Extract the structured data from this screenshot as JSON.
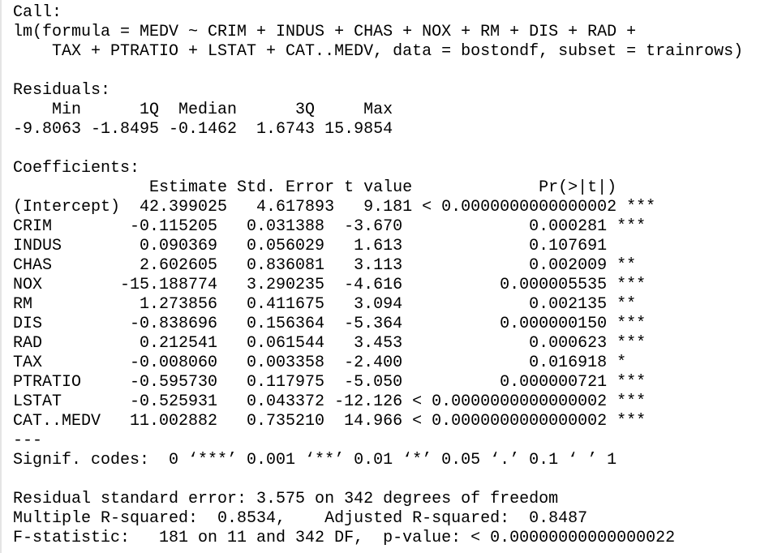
{
  "console": {
    "lines": [
      "Call:",
      "lm(formula = MEDV ~ CRIM + INDUS + CHAS + NOX + RM + DIS + RAD + ",
      "    TAX + PTRATIO + LSTAT + CAT..MEDV, data = bostondf, subset = trainrows)",
      "",
      "Residuals:",
      "    Min      1Q  Median      3Q     Max ",
      "-9.8063 -1.8495 -0.1462  1.6743 15.9854 ",
      "",
      "Coefficients:",
      "              Estimate Std. Error t value             Pr(>|t|)    ",
      "(Intercept)  42.399025   4.617893   9.181 < 0.0000000000000002 ***",
      "CRIM        -0.115205   0.031388  -3.670             0.000281 ***",
      "INDUS        0.090369   0.056029   1.613             0.107691    ",
      "CHAS         2.602605   0.836081   3.113             0.002009 ** ",
      "NOX        -15.188774   3.290235  -4.616          0.000005535 ***",
      "RM           1.273856   0.411675   3.094             0.002135 ** ",
      "DIS         -0.838696   0.156364  -5.364          0.000000150 ***",
      "RAD          0.212541   0.061544   3.453             0.000623 ***",
      "TAX         -0.008060   0.003358  -2.400             0.016918 *  ",
      "PTRATIO     -0.595730   0.117975  -5.050          0.000000721 ***",
      "LSTAT       -0.525931   0.043372 -12.126 < 0.0000000000000002 ***",
      "CAT..MEDV   11.002882   0.735210  14.966 < 0.0000000000000002 ***",
      "---",
      "Signif. codes:  0 ‘***’ 0.001 ‘**’ 0.01 ‘*’ 0.05 ‘.’ 0.1 ‘ ’ 1",
      "",
      "Residual standard error: 3.575 on 342 degrees of freedom",
      "Multiple R-squared:  0.8534,\tAdjusted R-squared:  0.8487 ",
      "F-statistic:   181 on 11 and 342 DF,  p-value: < 0.00000000000000022"
    ]
  }
}
